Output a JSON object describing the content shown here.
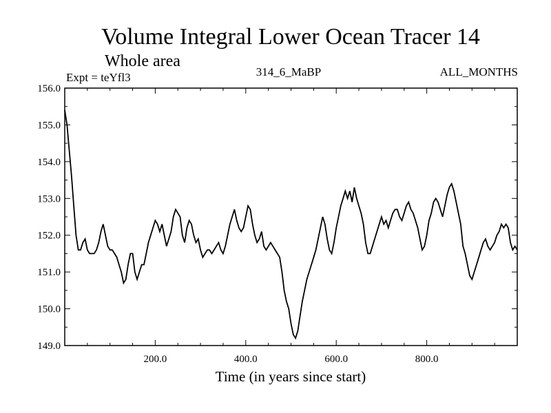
{
  "chart_data": {
    "type": "line",
    "title": "Volume Integral Lower Ocean Tracer 14",
    "subtitle": "Whole area",
    "expt_label": "Expt = teYfl3",
    "center_label": "314_6_MaBP",
    "right_label": "ALL_MONTHS",
    "xlabel": "Time (in years since start)",
    "ylabel": "",
    "xlim": [
      0,
      1000
    ],
    "ylim": [
      149.0,
      156.0
    ],
    "x_ticks": [
      200,
      400,
      600,
      800
    ],
    "x_tick_labels": [
      "200.0",
      "400.0",
      "600.0",
      "800.0"
    ],
    "y_ticks": [
      149,
      150,
      151,
      152,
      153,
      154,
      155,
      156
    ],
    "y_tick_labels": [
      "149.0",
      "150.0",
      "151.0",
      "152.0",
      "153.0",
      "154.0",
      "155.0",
      "156.0"
    ],
    "series": [
      {
        "name": "tracer14",
        "x": [
          0,
          5,
          10,
          15,
          20,
          25,
          30,
          35,
          40,
          45,
          50,
          55,
          60,
          65,
          70,
          75,
          80,
          85,
          90,
          95,
          100,
          105,
          110,
          115,
          120,
          125,
          130,
          135,
          140,
          145,
          150,
          155,
          160,
          165,
          170,
          175,
          180,
          185,
          190,
          195,
          200,
          205,
          210,
          215,
          220,
          225,
          230,
          235,
          240,
          245,
          250,
          255,
          260,
          265,
          270,
          275,
          280,
          285,
          290,
          295,
          300,
          305,
          310,
          315,
          320,
          325,
          330,
          335,
          340,
          345,
          350,
          355,
          360,
          365,
          370,
          375,
          380,
          385,
          390,
          395,
          400,
          405,
          410,
          415,
          420,
          425,
          430,
          435,
          440,
          445,
          450,
          455,
          460,
          465,
          470,
          475,
          480,
          485,
          490,
          495,
          500,
          505,
          510,
          515,
          520,
          525,
          530,
          535,
          540,
          545,
          550,
          555,
          560,
          565,
          570,
          575,
          580,
          585,
          590,
          595,
          600,
          605,
          610,
          615,
          620,
          625,
          630,
          635,
          640,
          645,
          650,
          655,
          660,
          665,
          670,
          675,
          680,
          685,
          690,
          695,
          700,
          705,
          710,
          715,
          720,
          725,
          730,
          735,
          740,
          745,
          750,
          755,
          760,
          765,
          770,
          775,
          780,
          785,
          790,
          795,
          800,
          805,
          810,
          815,
          820,
          825,
          830,
          835,
          840,
          845,
          850,
          855,
          860,
          865,
          870,
          875,
          880,
          885,
          890,
          895,
          900,
          905,
          910,
          915,
          920,
          925,
          930,
          935,
          940,
          945,
          950,
          955,
          960,
          965,
          970,
          975,
          980,
          985,
          990,
          995,
          1000
        ],
        "values": [
          155.4,
          155.0,
          154.3,
          153.6,
          152.8,
          152.0,
          151.6,
          151.6,
          151.8,
          151.9,
          151.6,
          151.5,
          151.5,
          151.5,
          151.6,
          151.8,
          152.1,
          152.3,
          152.0,
          151.7,
          151.6,
          151.6,
          151.5,
          151.4,
          151.2,
          151.0,
          150.7,
          150.8,
          151.2,
          151.5,
          151.5,
          151.0,
          150.8,
          151.0,
          151.2,
          151.2,
          151.5,
          151.8,
          152.0,
          152.2,
          152.4,
          152.3,
          152.1,
          152.3,
          152.0,
          151.7,
          151.9,
          152.1,
          152.5,
          152.7,
          152.6,
          152.5,
          152.0,
          151.8,
          152.2,
          152.4,
          152.3,
          152.0,
          151.8,
          151.9,
          151.6,
          151.4,
          151.5,
          151.6,
          151.6,
          151.5,
          151.6,
          151.7,
          151.8,
          151.6,
          151.5,
          151.7,
          152.0,
          152.3,
          152.5,
          152.7,
          152.4,
          152.2,
          152.1,
          152.2,
          152.5,
          152.8,
          152.7,
          152.3,
          152.0,
          151.8,
          151.9,
          152.1,
          151.7,
          151.6,
          151.7,
          151.8,
          151.7,
          151.6,
          151.5,
          151.4,
          151.0,
          150.5,
          150.2,
          150.0,
          149.6,
          149.3,
          149.2,
          149.4,
          149.8,
          150.2,
          150.5,
          150.8,
          151.0,
          151.2,
          151.4,
          151.6,
          151.9,
          152.2,
          152.5,
          152.3,
          151.9,
          151.6,
          151.5,
          151.8,
          152.2,
          152.5,
          152.8,
          153.0,
          153.2,
          153.0,
          153.2,
          152.9,
          153.3,
          153.0,
          152.8,
          152.6,
          152.3,
          151.8,
          151.5,
          151.5,
          151.7,
          151.9,
          152.1,
          152.3,
          152.5,
          152.3,
          152.4,
          152.2,
          152.4,
          152.6,
          152.7,
          152.7,
          152.5,
          152.4,
          152.6,
          152.8,
          152.9,
          152.7,
          152.6,
          152.4,
          152.2,
          151.9,
          151.6,
          151.7,
          152.0,
          152.4,
          152.6,
          152.9,
          153.0,
          152.9,
          152.7,
          152.5,
          152.8,
          153.1,
          153.3,
          153.4,
          153.2,
          152.9,
          152.6,
          152.3,
          151.7,
          151.5,
          151.2,
          150.9,
          150.8,
          151.0,
          151.2,
          151.4,
          151.6,
          151.8,
          151.9,
          151.7,
          151.6,
          151.7,
          151.8,
          152.0,
          152.1,
          152.3,
          152.2,
          152.3,
          152.2,
          151.8,
          151.6,
          151.7,
          151.6
        ]
      }
    ]
  }
}
